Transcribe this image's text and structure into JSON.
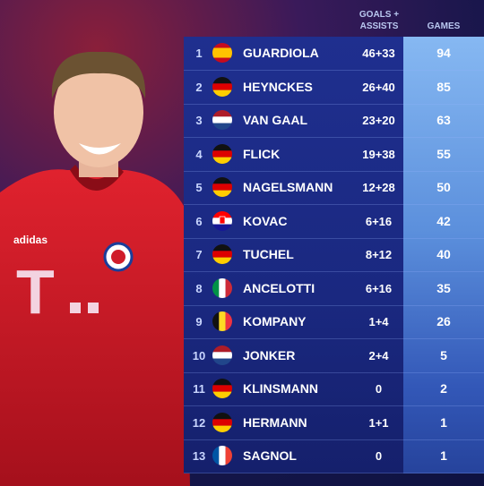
{
  "table": {
    "header": {
      "goals_assists": "GOALS + ASSISTS",
      "games": "GAMES"
    },
    "rows": [
      [
        1,
        "GUARDIOLA",
        "46+33",
        94
      ],
      [
        2,
        "HEYNCKES",
        "26+40",
        85
      ],
      [
        3,
        "VAN GAAL",
        "23+20",
        63
      ],
      [
        4,
        "FLICK",
        "19+38",
        55
      ],
      [
        5,
        "NAGELSMANN",
        "12+28",
        50
      ],
      [
        6,
        "KOVAC",
        "6+16",
        42
      ],
      [
        7,
        "TUCHEL",
        "8+12",
        40
      ],
      [
        8,
        "ANCELOTTI",
        "6+16",
        35
      ],
      [
        9,
        "KOMPANY",
        "1+4",
        26
      ],
      [
        10,
        "JONKER",
        "2+4",
        5
      ],
      [
        11,
        "KLINSMANN",
        "0",
        2
      ],
      [
        12,
        "HERMANN",
        "1+1",
        1
      ],
      [
        13,
        "SAGNOL",
        "0",
        1
      ]
    ]
  }
}
